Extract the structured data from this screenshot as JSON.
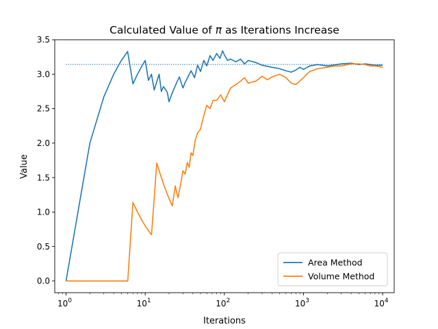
{
  "chart_data": {
    "type": "line",
    "title_prefix": "Calculated Value of ",
    "title_symbol": "π",
    "title_suffix": " as Iterations Increase",
    "xlabel": "Iterations",
    "ylabel": "Value",
    "xscale": "log",
    "xlim": [
      0.72,
      14000
    ],
    "ylim": [
      -0.17,
      3.5
    ],
    "grid": false,
    "legend_position": "lower-right",
    "x_ticks": [
      {
        "value": 1,
        "base": "10",
        "exp": "0"
      },
      {
        "value": 10,
        "base": "10",
        "exp": "1"
      },
      {
        "value": 100,
        "base": "10",
        "exp": "2"
      },
      {
        "value": 1000,
        "base": "10",
        "exp": "3"
      },
      {
        "value": 10000,
        "base": "10",
        "exp": "4"
      }
    ],
    "y_ticks": [
      {
        "value": 0.0,
        "label": "0.0"
      },
      {
        "value": 0.5,
        "label": "0.5"
      },
      {
        "value": 1.0,
        "label": "1.0"
      },
      {
        "value": 1.5,
        "label": "1.5"
      },
      {
        "value": 2.0,
        "label": "2.0"
      },
      {
        "value": 2.5,
        "label": "2.5"
      },
      {
        "value": 3.0,
        "label": "3.0"
      },
      {
        "value": 3.5,
        "label": "3.5"
      }
    ],
    "reference_line": {
      "y": 3.14159,
      "x_range": [
        1,
        10000
      ],
      "color": "#1f77b4",
      "style": "dotted"
    },
    "series": [
      {
        "name": "Area Method",
        "color": "#1f77b4",
        "x": [
          1,
          2,
          3,
          4,
          5,
          6,
          7,
          8,
          9,
          10,
          11,
          12,
          13,
          15,
          16,
          17,
          19,
          20,
          22,
          25,
          27,
          30,
          32,
          35,
          38,
          42,
          46,
          50,
          55,
          60,
          66,
          72,
          80,
          88,
          95,
          100,
          110,
          120,
          140,
          160,
          180,
          200,
          250,
          300,
          400,
          500,
          600,
          700,
          800,
          900,
          1000,
          1200,
          1500,
          2000,
          3000,
          4000,
          5000,
          6000,
          8000,
          10000
        ],
        "y": [
          0.0,
          2.0,
          2.67,
          3.0,
          3.2,
          3.33,
          2.86,
          3.0,
          3.11,
          3.2,
          2.91,
          3.0,
          2.77,
          3.0,
          2.75,
          2.82,
          2.74,
          2.6,
          2.73,
          2.88,
          2.96,
          2.8,
          2.88,
          2.97,
          3.05,
          2.95,
          3.13,
          3.04,
          3.2,
          3.12,
          3.27,
          3.2,
          3.3,
          3.23,
          3.34,
          3.28,
          3.2,
          3.22,
          3.18,
          3.22,
          3.15,
          3.2,
          3.17,
          3.13,
          3.1,
          3.08,
          3.05,
          3.03,
          3.06,
          3.1,
          3.07,
          3.12,
          3.14,
          3.12,
          3.15,
          3.16,
          3.14,
          3.15,
          3.13,
          3.13
        ]
      },
      {
        "name": "Volume Method",
        "color": "#ff7f0e",
        "x": [
          1,
          6,
          6.02,
          7,
          8,
          9,
          10,
          11,
          12,
          12.02,
          13,
          14,
          15,
          17,
          19,
          21,
          22,
          24,
          25,
          26,
          28,
          30,
          32,
          34,
          36,
          38,
          40,
          43,
          46,
          50,
          55,
          60,
          66,
          72,
          80,
          90,
          100,
          120,
          140,
          160,
          180,
          200,
          250,
          300,
          350,
          400,
          500,
          600,
          700,
          800,
          1000,
          1200,
          1500,
          2000,
          2500,
          3000,
          4000,
          5000,
          6000,
          7000,
          8000,
          10000
        ],
        "y": [
          0.0,
          0.0,
          0.0,
          1.14,
          1.0,
          0.89,
          0.8,
          0.73,
          0.67,
          0.67,
          1.2,
          1.71,
          1.6,
          1.41,
          1.26,
          1.14,
          1.09,
          1.38,
          1.28,
          1.21,
          1.4,
          1.6,
          1.55,
          1.72,
          1.65,
          1.86,
          1.82,
          2.05,
          2.15,
          2.2,
          2.4,
          2.55,
          2.5,
          2.62,
          2.62,
          2.7,
          2.6,
          2.8,
          2.85,
          2.9,
          2.95,
          2.87,
          2.9,
          2.97,
          2.92,
          2.96,
          3.0,
          2.95,
          2.87,
          2.85,
          2.95,
          3.04,
          3.08,
          3.1,
          3.12,
          3.12,
          3.15,
          3.15,
          3.14,
          3.12,
          3.12,
          3.1
        ]
      }
    ]
  }
}
